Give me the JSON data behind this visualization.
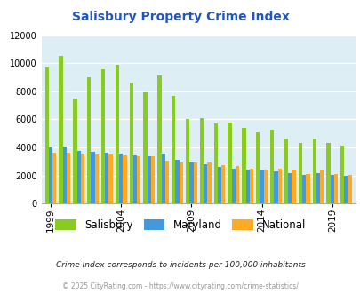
{
  "title": "Salisbury Property Crime Index",
  "all_years": [
    1999,
    2000,
    2001,
    2002,
    2003,
    2004,
    2005,
    2006,
    2007,
    2008,
    2009,
    2010,
    2011,
    2012,
    2013,
    2014,
    2015,
    2016,
    2017,
    2018,
    2019,
    2020
  ],
  "salisbury": [
    9700,
    10500,
    7500,
    9000,
    9600,
    9900,
    8600,
    7900,
    9100,
    7700,
    6000,
    6100,
    5700,
    5800,
    5400,
    5100,
    5300,
    4650,
    4300,
    4650,
    4300,
    4150
  ],
  "maryland": [
    4000,
    4050,
    3750,
    3700,
    3600,
    3550,
    3450,
    3400,
    3550,
    3100,
    2900,
    2800,
    2600,
    2500,
    2450,
    2350,
    2300,
    2200,
    2050,
    2200,
    2050,
    2000
  ],
  "national": [
    3650,
    3650,
    3550,
    3500,
    3500,
    3450,
    3350,
    3350,
    3050,
    2950,
    2950,
    2900,
    2750,
    2650,
    2500,
    2400,
    2500,
    2350,
    2100,
    2350,
    2100,
    2050
  ],
  "color_salisbury": "#88cc22",
  "color_maryland": "#4499dd",
  "color_national": "#ffaa22",
  "bg_color": "#ddeef5",
  "title_color": "#2255bb",
  "xtick_years": [
    1999,
    2004,
    2009,
    2014,
    2019
  ],
  "footnote1": "Crime Index corresponds to incidents per 100,000 inhabitants",
  "footnote2": "© 2025 CityRating.com - https://www.cityrating.com/crime-statistics/",
  "footnote1_color": "#222222",
  "footnote2_color": "#999999",
  "footnote2_link_color": "#4477bb"
}
